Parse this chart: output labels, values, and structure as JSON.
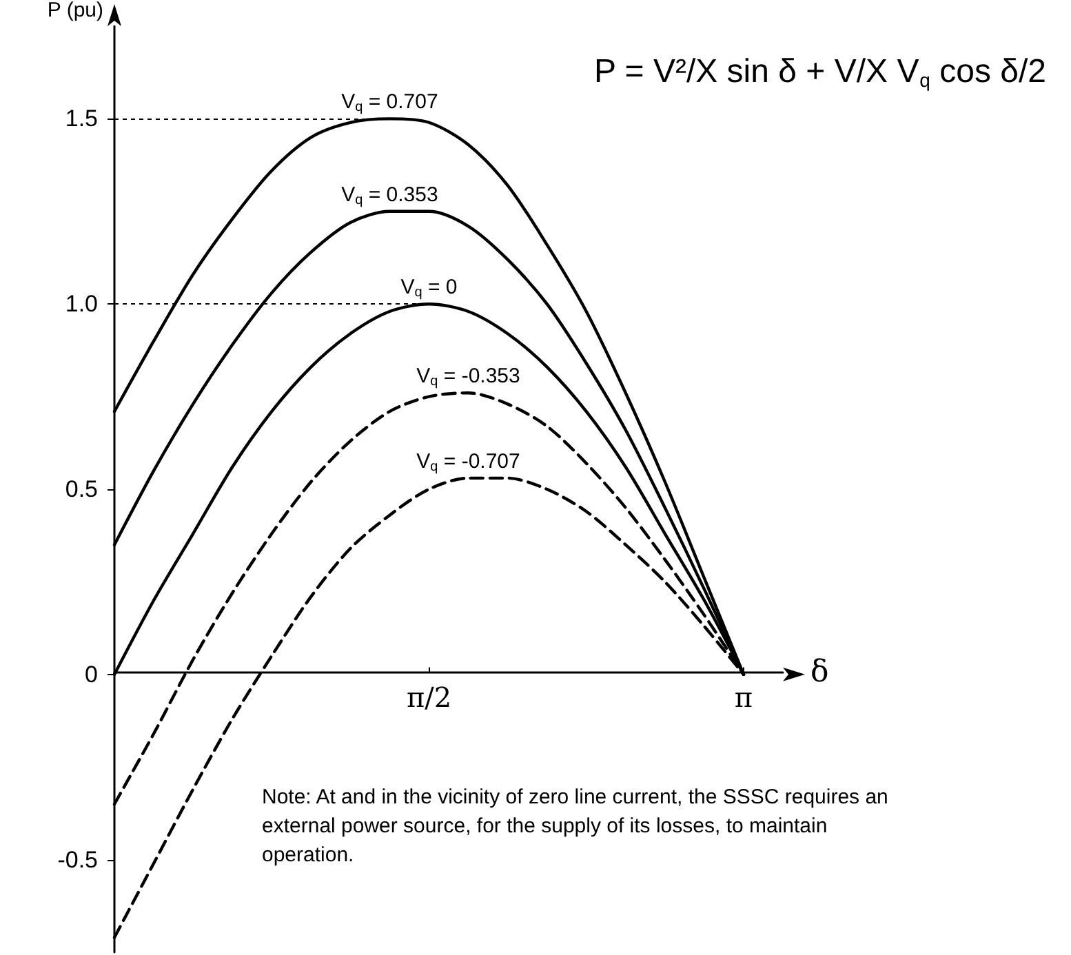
{
  "chart_data": {
    "type": "line",
    "xlabel": "δ",
    "ylabel": "P (pu)",
    "categories": [
      null,
      null,
      null,
      null,
      null,
      null,
      null,
      null,
      "π/2",
      null,
      null,
      null,
      null,
      null,
      null,
      null,
      "π"
    ],
    "ylim": [
      -0.75,
      1.75
    ],
    "yticks": [
      {
        "value": -0.5,
        "label": "-0.5"
      },
      0,
      0.5,
      {
        "value": 1,
        "label": "1.0"
      },
      1.5
    ],
    "grid": false,
    "legend": false,
    "marker": "none",
    "series": [
      {
        "name": "V$_{q}$ = 0.707",
        "color": "#000000",
        "line_style": "solid",
        "values": [
          0.71,
          0.9,
          1.08,
          1.23,
          1.36,
          1.45,
          1.49,
          1.5,
          1.49,
          1.43,
          1.32,
          1.16,
          0.98,
          0.76,
          0.52,
          0.26,
          0
        ]
      },
      {
        "name": "V$_{q}$ = 0.353",
        "color": "#000000",
        "line_style": "solid",
        "values": [
          0.35,
          0.55,
          0.73,
          0.89,
          1.03,
          1.14,
          1.22,
          1.25,
          1.25,
          1.21,
          1.12,
          1,
          0.84,
          0.66,
          0.45,
          0.23,
          0
        ]
      },
      {
        "name": "V$_{q}$ = 0",
        "color": "#000000",
        "line_style": "solid",
        "values": [
          0,
          0.2,
          0.38,
          0.56,
          0.71,
          0.83,
          0.92,
          0.98,
          1,
          0.98,
          0.92,
          0.83,
          0.71,
          0.56,
          0.38,
          0.2,
          0
        ]
      },
      {
        "name": "V$_{q}$ = -0.353",
        "color": "#000000",
        "line_style": "dashed",
        "values": [
          -0.35,
          -0.16,
          0.04,
          0.22,
          0.38,
          0.52,
          0.63,
          0.71,
          0.75,
          0.76,
          0.73,
          0.67,
          0.57,
          0.45,
          0.31,
          0.16,
          0
        ]
      },
      {
        "name": "V$_{q}$ = -0.707",
        "color": "#000000",
        "line_style": "dashed",
        "values": [
          -0.71,
          -0.51,
          -0.31,
          -0.12,
          0.05,
          0.21,
          0.34,
          0.43,
          0.5,
          0.53,
          0.53,
          0.5,
          0.44,
          0.35,
          0.25,
          0.13,
          0
        ]
      }
    ],
    "ref_lines": [
      {
        "axis": "y",
        "value": 1.5,
        "line_style": "dotted"
      },
      {
        "axis": "y",
        "value": 1,
        "line_style": "dotted"
      }
    ],
    "annotations": [
      "P = V²/X sin δ + V/X V$_{q}$ cos δ/2",
      "Note: At and in the vicinity of zero line current, the SSSC requires an external power source, for the supply of its losses, to maintain operation."
    ]
  }
}
